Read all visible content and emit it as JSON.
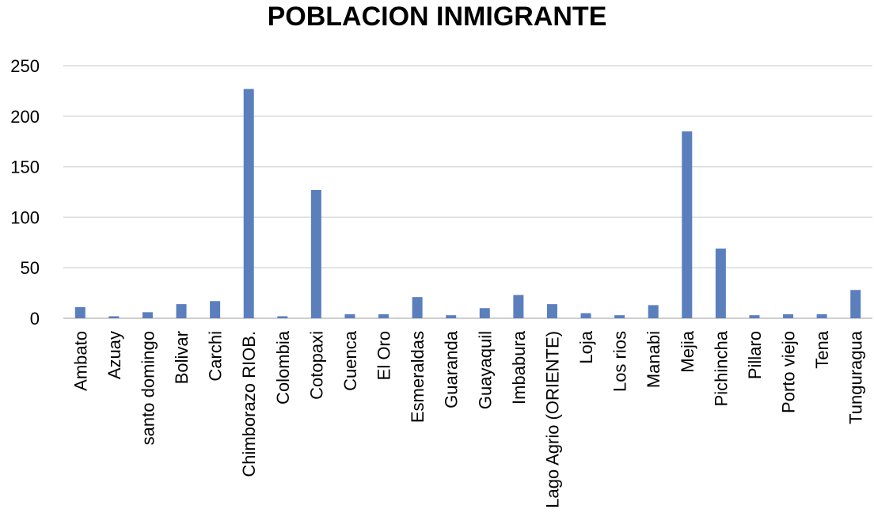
{
  "chart_data": {
    "type": "bar",
    "title": "POBLACION INMIGRANTE",
    "xlabel": "",
    "ylabel": "",
    "ylim": [
      0,
      250
    ],
    "yticks": [
      "0",
      "50",
      "100",
      "150",
      "200",
      "250"
    ],
    "grid": true,
    "legend": "none",
    "bar_color": "#5b7fbd",
    "categories": [
      "Ambato",
      "Azuay",
      "santo domingo",
      "Bolivar",
      "Carchi",
      "Chimborazo RIOB.",
      "Colombia",
      "Cotopaxi",
      "Cuenca",
      "El Oro",
      "Esmeraldas",
      "Guaranda",
      "Guayaquil",
      "Imbabura",
      "Lago Agrio (ORIENTE)",
      "Loja",
      "Los rios",
      "Manabi",
      "Mejia",
      "Pichincha",
      "Pillaro",
      "Porto viejo",
      "Tena",
      "Tunguragua"
    ],
    "values": [
      11,
      2,
      6,
      14,
      17,
      227,
      2,
      127,
      4,
      4,
      21,
      3,
      10,
      23,
      14,
      5,
      3,
      13,
      185,
      69,
      3,
      4,
      4,
      28
    ]
  }
}
